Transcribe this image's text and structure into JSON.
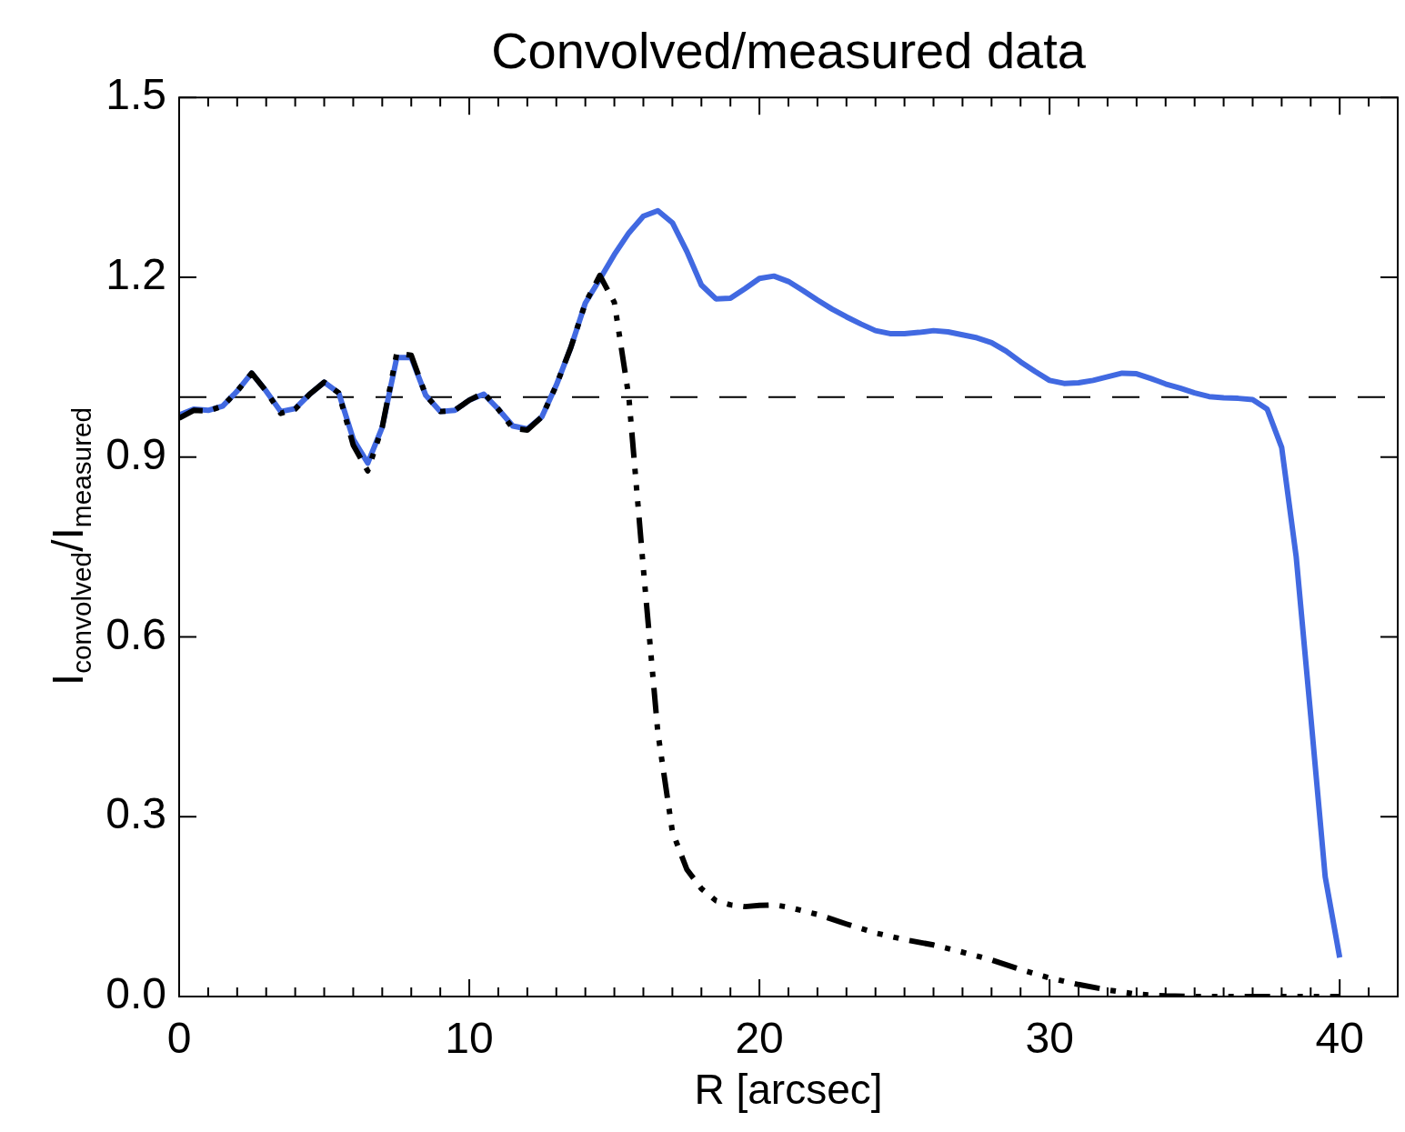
{
  "chart_data": {
    "type": "line",
    "title": "Convolved/measured data",
    "xlabel": "R [arcsec]",
    "ylabel": "I$_{convolved}$/I$_{measured}$",
    "xlim": [
      0,
      42
    ],
    "xticks": [
      0,
      {
        "value": 1,
        "label": null
      },
      {
        "value": 2,
        "label": null
      },
      {
        "value": 3,
        "label": null
      },
      {
        "value": 4,
        "label": null
      },
      {
        "value": 5,
        "label": null
      },
      {
        "value": 6,
        "label": null
      },
      {
        "value": 7,
        "label": null
      },
      {
        "value": 8,
        "label": null
      },
      {
        "value": 9,
        "label": null
      },
      10,
      {
        "value": 11,
        "label": null
      },
      {
        "value": 12,
        "label": null
      },
      {
        "value": 13,
        "label": null
      },
      {
        "value": 14,
        "label": null
      },
      {
        "value": 15,
        "label": null
      },
      {
        "value": 16,
        "label": null
      },
      {
        "value": 17,
        "label": null
      },
      {
        "value": 18,
        "label": null
      },
      {
        "value": 19,
        "label": null
      },
      20,
      {
        "value": 21,
        "label": null
      },
      {
        "value": 22,
        "label": null
      },
      {
        "value": 23,
        "label": null
      },
      {
        "value": 24,
        "label": null
      },
      {
        "value": 25,
        "label": null
      },
      {
        "value": 26,
        "label": null
      },
      {
        "value": 27,
        "label": null
      },
      {
        "value": 28,
        "label": null
      },
      {
        "value": 29,
        "label": null
      },
      30,
      {
        "value": 31,
        "label": null
      },
      {
        "value": 32,
        "label": null
      },
      {
        "value": 33,
        "label": null
      },
      {
        "value": 34,
        "label": null
      },
      {
        "value": 35,
        "label": null
      },
      {
        "value": 36,
        "label": null
      },
      {
        "value": 37,
        "label": null
      },
      {
        "value": 38,
        "label": null
      },
      {
        "value": 39,
        "label": null
      },
      40,
      {
        "value": 41,
        "label": null
      }
    ],
    "ylim": [
      0,
      1.5
    ],
    "yticks": [
      {
        "value": 0,
        "label": "0.0"
      },
      0.3,
      0.6,
      0.9,
      1.2,
      1.5
    ],
    "ref_lines": [
      {
        "axis": "y",
        "value": 1,
        "color": "#000000",
        "line_style": "dashed"
      }
    ],
    "series": [
      {
        "color": "#4169e1",
        "line_style": "solid",
        "x": [
          0,
          0.5,
          1,
          1.5,
          2,
          2.5,
          3,
          3.5,
          4,
          4.5,
          5,
          5.5,
          6,
          6.5,
          7,
          7.5,
          8,
          8.5,
          9,
          9.5,
          10,
          10.5,
          11,
          11.5,
          12,
          12.5,
          13,
          13.5,
          14,
          14.5,
          15,
          15.5,
          16,
          16.5,
          17,
          17.5,
          18,
          18.5,
          19,
          19.5,
          20,
          20.5,
          21,
          21.5,
          22,
          22.5,
          23,
          23.5,
          24,
          24.5,
          25,
          25.5,
          26,
          26.5,
          27,
          27.5,
          28,
          28.5,
          29,
          29.5,
          30,
          30.5,
          31,
          31.5,
          32,
          32.5,
          33,
          33.5,
          34,
          34.5,
          35,
          35.5,
          36,
          36.5,
          37,
          37.5,
          38,
          38.5,
          39,
          39.5,
          40
        ],
        "values": [
          0.97,
          0.98,
          0.978,
          0.985,
          1.01,
          1.04,
          1.01,
          0.976,
          0.981,
          1.005,
          1.025,
          1.007,
          0.93,
          0.89,
          0.95,
          1.066,
          1.066,
          1.003,
          0.976,
          0.978,
          0.995,
          1.005,
          0.98,
          0.952,
          0.947,
          0.967,
          1.02,
          1.083,
          1.157,
          1.197,
          1.238,
          1.274,
          1.302,
          1.311,
          1.291,
          1.243,
          1.187,
          1.164,
          1.165,
          1.181,
          1.198,
          1.202,
          1.193,
          1.178,
          1.162,
          1.147,
          1.134,
          1.122,
          1.111,
          1.106,
          1.106,
          1.108,
          1.111,
          1.109,
          1.104,
          1.099,
          1.091,
          1.077,
          1.059,
          1.043,
          1.028,
          1.023,
          1.024,
          1.028,
          1.034,
          1.04,
          1.039,
          1.031,
          1.022,
          1.015,
          1.007,
          1.001,
          0.999,
          0.998,
          0.996,
          0.98,
          0.916,
          0.734,
          0.469,
          0.2,
          0.065
        ]
      },
      {
        "color": "#000000",
        "line_style": "dashed",
        "x": [
          0,
          0.5,
          1,
          1.5,
          2,
          2.5,
          3,
          3.5,
          4,
          4.5,
          5,
          5.5,
          6,
          6.5,
          7,
          7.5,
          8,
          8.5,
          9,
          9.5,
          10,
          10.5,
          11,
          11.5,
          12,
          12.5,
          13,
          13.5,
          14,
          14.5,
          15,
          15.5,
          16,
          16.5,
          17,
          17.5,
          18,
          18.5,
          19,
          19.5,
          20,
          20.5,
          21,
          22,
          23,
          24,
          25,
          26,
          27,
          28,
          29,
          30,
          31,
          32,
          33,
          34,
          35,
          36,
          37,
          38,
          39,
          40
        ],
        "values": [
          0.965,
          0.978,
          0.977,
          0.985,
          1.01,
          1.04,
          1.01,
          0.973,
          0.98,
          1.005,
          1.025,
          1.007,
          0.92,
          0.877,
          0.95,
          1.073,
          1.07,
          1.003,
          0.976,
          0.978,
          0.995,
          1.007,
          0.98,
          0.948,
          0.945,
          0.967,
          1.02,
          1.083,
          1.157,
          1.203,
          1.158,
          1.0,
          0.714,
          0.44,
          0.275,
          0.212,
          0.18,
          0.16,
          0.153,
          0.15,
          0.152,
          0.153,
          0.149,
          0.137,
          0.121,
          0.106,
          0.095,
          0.086,
          0.074,
          0.061,
          0.045,
          0.031,
          0.02,
          0.011,
          0.004,
          0.001,
          0,
          0,
          0,
          0,
          0,
          0
        ]
      }
    ]
  }
}
